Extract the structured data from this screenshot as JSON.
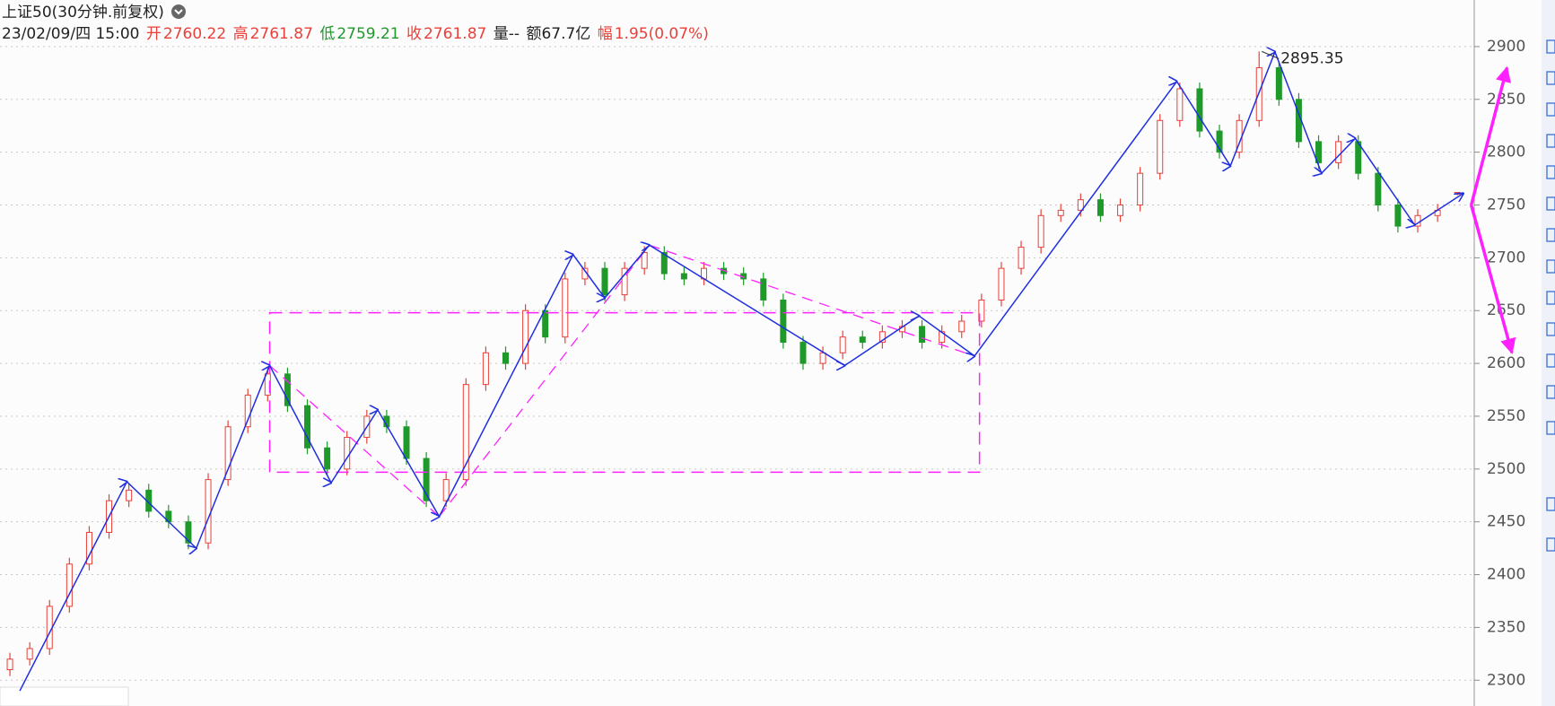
{
  "chart_data": {
    "type": "candlestick",
    "title": "上证50(30分钟.前复权)",
    "info": {
      "datetime": "23/02/09/四 15:00",
      "labels": [
        "开",
        "高",
        "低",
        "收"
      ],
      "volume": "量--",
      "amount": "额67.7亿",
      "change_label": "幅",
      "change": "1.95(0.07%)"
    },
    "ohlc": [
      [
        2310,
        2326,
        2304,
        2320
      ],
      [
        2320,
        2336,
        2314,
        2330
      ],
      [
        2330,
        2376,
        2324,
        2370
      ],
      [
        2370,
        2416,
        2364,
        2410
      ],
      [
        2410,
        2446,
        2404,
        2440
      ],
      [
        2440,
        2476,
        2434,
        2470
      ],
      [
        2470,
        2486,
        2464,
        2480
      ],
      [
        2480,
        2486,
        2454,
        2460
      ],
      [
        2460,
        2466,
        2444,
        2450
      ],
      [
        2450,
        2456,
        2424,
        2430
      ],
      [
        2430,
        2496,
        2424,
        2490
      ],
      [
        2490,
        2546,
        2484,
        2540
      ],
      [
        2540,
        2576,
        2534,
        2570
      ],
      [
        2570,
        2596,
        2564,
        2590
      ],
      [
        2590,
        2596,
        2554,
        2560
      ],
      [
        2560,
        2566,
        2514,
        2520
      ],
      [
        2520,
        2526,
        2494,
        2500
      ],
      [
        2500,
        2536,
        2494,
        2530
      ],
      [
        2530,
        2556,
        2524,
        2550
      ],
      [
        2550,
        2556,
        2534,
        2540
      ],
      [
        2540,
        2546,
        2504,
        2510
      ],
      [
        2510,
        2516,
        2464,
        2470
      ],
      [
        2470,
        2496,
        2464,
        2490
      ],
      [
        2490,
        2586,
        2484,
        2580
      ],
      [
        2580,
        2616,
        2574,
        2610
      ],
      [
        2610,
        2616,
        2594,
        2600
      ],
      [
        2600,
        2656,
        2594,
        2650
      ],
      [
        2650,
        2656,
        2619,
        2625
      ],
      [
        2625,
        2686,
        2619,
        2680
      ],
      [
        2680,
        2696,
        2674,
        2690
      ],
      [
        2690,
        2696,
        2659,
        2665
      ],
      [
        2665,
        2696,
        2659,
        2690
      ],
      [
        2690,
        2711,
        2684,
        2705
      ],
      [
        2705,
        2711,
        2679,
        2685
      ],
      [
        2685,
        2691,
        2674,
        2680
      ],
      [
        2680,
        2696,
        2674,
        2690
      ],
      [
        2690,
        2696,
        2679,
        2685
      ],
      [
        2685,
        2691,
        2674,
        2680
      ],
      [
        2680,
        2686,
        2654,
        2660
      ],
      [
        2660,
        2666,
        2614,
        2620
      ],
      [
        2620,
        2626,
        2594,
        2600
      ],
      [
        2600,
        2616,
        2594,
        2610
      ],
      [
        2610,
        2631,
        2604,
        2625
      ],
      [
        2625,
        2631,
        2614,
        2620
      ],
      [
        2620,
        2636,
        2614,
        2630
      ],
      [
        2630,
        2641,
        2624,
        2635
      ],
      [
        2635,
        2641,
        2614,
        2620
      ],
      [
        2620,
        2636,
        2614,
        2630
      ],
      [
        2630,
        2646,
        2624,
        2640
      ],
      [
        2640,
        2666,
        2634,
        2660
      ],
      [
        2660,
        2696,
        2654,
        2690
      ],
      [
        2690,
        2716,
        2684,
        2710
      ],
      [
        2710,
        2746,
        2704,
        2740
      ],
      [
        2740,
        2751,
        2734,
        2745
      ],
      [
        2745,
        2761,
        2739,
        2755
      ],
      [
        2755,
        2761,
        2734,
        2740
      ],
      [
        2740,
        2756,
        2734,
        2750
      ],
      [
        2750,
        2786,
        2744,
        2780
      ],
      [
        2780,
        2836,
        2774,
        2830
      ],
      [
        2830,
        2866,
        2824,
        2860
      ],
      [
        2860,
        2866,
        2814,
        2820
      ],
      [
        2820,
        2826,
        2794,
        2800
      ],
      [
        2800,
        2836,
        2794,
        2830
      ],
      [
        2830,
        2895.35,
        2824,
        2880
      ],
      [
        2880,
        2886,
        2844,
        2850
      ],
      [
        2850,
        2856,
        2804,
        2810
      ],
      [
        2810,
        2816,
        2784,
        2790
      ],
      [
        2790,
        2816,
        2784,
        2810
      ],
      [
        2810,
        2816,
        2774,
        2780
      ],
      [
        2780,
        2786,
        2744,
        2750
      ],
      [
        2750,
        2756,
        2724,
        2730
      ],
      [
        2730,
        2746,
        2724,
        2740
      ],
      [
        2740,
        2751,
        2734,
        2745
      ],
      [
        2760.22,
        2761.87,
        2759.21,
        2761.87
      ]
    ],
    "up_color": "#e8413a",
    "down_color": "#1f9a2a",
    "zigzag": {
      "color": "#1f2fe0",
      "x": [
        0.5,
        5.9,
        9.4,
        13.1,
        16.2,
        18.55,
        21.65,
        28.4,
        30,
        32.25,
        42.1,
        45.85,
        48.65,
        58.85,
        61.55,
        63.8,
        66.15,
        67.85,
        70.85,
        73.3
      ],
      "values": [
        2290,
        2488,
        2425,
        2598,
        2487,
        2556,
        2455,
        2703,
        2662,
        2712,
        2598,
        2645,
        2607,
        2867,
        2787,
        2895,
        2780,
        2813,
        2731,
        2761
      ]
    },
    "drawings": {
      "color": "#ff20ff",
      "box": {
        "x": [
          13.1,
          48.9
        ],
        "values": [
          2648,
          2497
        ]
      },
      "lines": [
        {
          "x": [
            13.1,
            21.65
          ],
          "values": [
            2598,
            2455
          ]
        },
        {
          "x": [
            21.65,
            32.25
          ],
          "values": [
            2455,
            2712
          ]
        },
        {
          "x": [
            32.25,
            48.65
          ],
          "values": [
            2712,
            2607
          ]
        }
      ],
      "arrows": [
        {
          "x": [
            73.7,
            75.5
          ],
          "values": [
            2750,
            2880
          ]
        },
        {
          "x": [
            73.7,
            75.75
          ],
          "values": [
            2750,
            2610
          ]
        }
      ]
    },
    "xlim": [
      -0.5,
      73.85
    ],
    "ylim": [
      2275.6,
      2944.1
    ],
    "yticks": [
      2300,
      2350,
      2400,
      2450,
      2500,
      2550,
      2600,
      2650,
      2700,
      2750,
      2800,
      2850,
      2900
    ],
    "grid": true
  }
}
